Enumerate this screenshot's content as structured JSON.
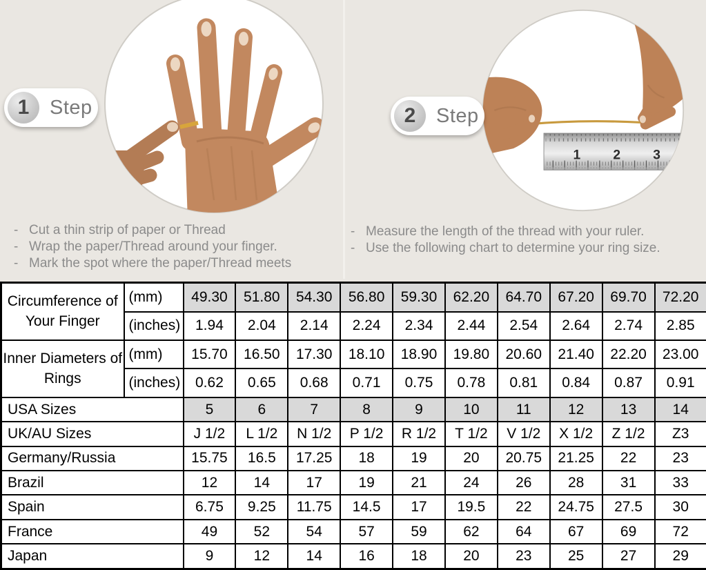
{
  "page": {
    "title": "Ring size measuring guide",
    "colors": {
      "background": "#eae7e2",
      "table_border": "#000000",
      "shaded_cell": "#d9d9d9",
      "step_text": "#7a7a7a",
      "instruction_text": "#8b8b8b",
      "gold_thread": "#c89a3e"
    }
  },
  "steps": [
    {
      "number": "1",
      "label": "Step",
      "photo": "hand with thread wrapped around ring finger",
      "instructions": [
        "Cut a thin strip of paper or Thread",
        "Wrap the paper/Thread around your finger.",
        "Mark the spot where the paper/Thread meets"
      ]
    },
    {
      "number": "2",
      "label": "Step",
      "photo": "two hands measuring thread length against a ruler",
      "instructions": [
        "Measure the length of the thread with your ruler.",
        "Use the following chart to determine your ring size."
      ],
      "ruler_numbers": [
        "1",
        "2",
        "3"
      ]
    }
  ],
  "chart_data": {
    "type": "table",
    "title": "Ring size conversion chart",
    "rows": [
      {
        "label": "Circumference of Your Finger",
        "label_rowspan": 2,
        "unit": "(mm)",
        "shaded": true,
        "values": [
          "49.30",
          "51.80",
          "54.30",
          "56.80",
          "59.30",
          "62.20",
          "64.70",
          "67.20",
          "69.70",
          "72.20"
        ]
      },
      {
        "unit": "(inches)",
        "values": [
          "1.94",
          "2.04",
          "2.14",
          "2.24",
          "2.34",
          "2.44",
          "2.54",
          "2.64",
          "2.74",
          "2.85"
        ]
      },
      {
        "label": "Inner Diameters of Rings",
        "label_rowspan": 2,
        "unit": "(mm)",
        "values": [
          "15.70",
          "16.50",
          "17.30",
          "18.10",
          "18.90",
          "19.80",
          "20.60",
          "21.40",
          "22.20",
          "23.00"
        ]
      },
      {
        "unit": "(inches)",
        "values": [
          "0.62",
          "0.65",
          "0.68",
          "0.71",
          "0.75",
          "0.78",
          "0.81",
          "0.84",
          "0.87",
          "0.91"
        ]
      },
      {
        "label": "USA Sizes",
        "label_colspan": 2,
        "shaded": true,
        "values": [
          "5",
          "6",
          "7",
          "8",
          "9",
          "10",
          "11",
          "12",
          "13",
          "14"
        ]
      },
      {
        "label": "UK/AU Sizes",
        "label_colspan": 2,
        "values": [
          "J 1/2",
          "L 1/2",
          "N 1/2",
          "P 1/2",
          "R 1/2",
          "T 1/2",
          "V 1/2",
          "X 1/2",
          "Z 1/2",
          "Z3"
        ]
      },
      {
        "label": "Germany/Russia",
        "label_colspan": 2,
        "values": [
          "15.75",
          "16.5",
          "17.25",
          "18",
          "19",
          "20",
          "20.75",
          "21.25",
          "22",
          "23"
        ]
      },
      {
        "label": "Brazil",
        "label_colspan": 2,
        "values": [
          "12",
          "14",
          "17",
          "19",
          "21",
          "24",
          "26",
          "28",
          "31",
          "33"
        ]
      },
      {
        "label": "Spain",
        "label_colspan": 2,
        "values": [
          "6.75",
          "9.25",
          "11.75",
          "14.5",
          "17",
          "19.5",
          "22",
          "24.75",
          "27.5",
          "30"
        ]
      },
      {
        "label": "France",
        "label_colspan": 2,
        "values": [
          "49",
          "52",
          "54",
          "57",
          "59",
          "62",
          "64",
          "67",
          "69",
          "72"
        ]
      },
      {
        "label": "Japan",
        "label_colspan": 2,
        "values": [
          "9",
          "12",
          "14",
          "16",
          "18",
          "20",
          "23",
          "25",
          "27",
          "29"
        ]
      }
    ]
  }
}
